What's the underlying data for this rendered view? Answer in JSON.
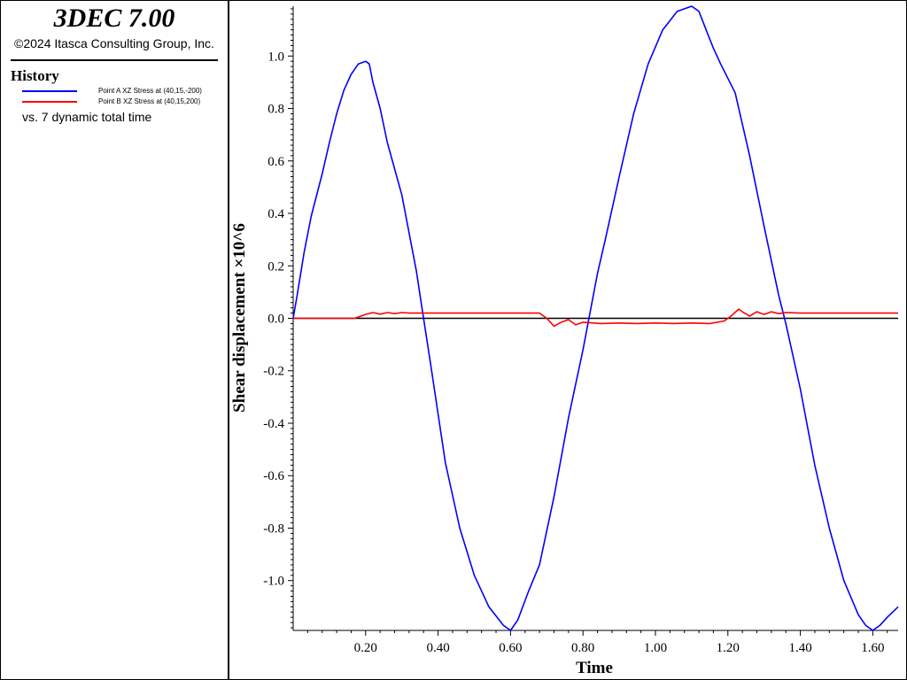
{
  "app": {
    "title": "3DEC 7.00",
    "copyright": "©2024 Itasca Consulting Group, Inc."
  },
  "legend": {
    "heading": "History",
    "vs_label": "vs. 7 dynamic total time",
    "entries": [
      {
        "label": "Point A XZ Stress at (40,15,-200)",
        "color": "#0000ff"
      },
      {
        "label": "Point B XZ Stress at (40,15,200)",
        "color": "#ff0000"
      }
    ]
  },
  "chart_data": {
    "type": "line",
    "xlabel": "Time",
    "ylabel": "Shear displacement ×10^6",
    "xlim": [
      0,
      1.67
    ],
    "ylim": [
      -1.19,
      1.19
    ],
    "xticks": [
      0.2,
      0.4,
      0.6,
      0.8,
      1.0,
      1.2,
      1.4,
      1.6
    ],
    "xtick_labels": [
      "0.20",
      "0.40",
      "0.60",
      "0.80",
      "1.00",
      "1.20",
      "1.40",
      "1.60"
    ],
    "yticks": [
      -1.0,
      -0.8,
      -0.6,
      -0.4,
      -0.2,
      0.0,
      0.2,
      0.4,
      0.6,
      0.8,
      1.0
    ],
    "ytick_labels": [
      "-1.0",
      "-0.8",
      "-0.6",
      "-0.4",
      "-0.2",
      "0.0",
      "0.2",
      "0.4",
      "0.6",
      "0.8",
      "1.0"
    ],
    "zero_line": true,
    "grid": false,
    "series": [
      {
        "name": "Point A XZ Stress at (40,15,-200)",
        "color": "#0000ff",
        "x": [
          0,
          0.01,
          0.03,
          0.05,
          0.08,
          0.1,
          0.12,
          0.14,
          0.16,
          0.18,
          0.2,
          0.21,
          0.22,
          0.24,
          0.26,
          0.3,
          0.34,
          0.36,
          0.38,
          0.42,
          0.46,
          0.5,
          0.54,
          0.58,
          0.6,
          0.62,
          0.65,
          0.68,
          0.72,
          0.76,
          0.8,
          0.84,
          0.86,
          0.9,
          0.94,
          0.98,
          1.02,
          1.06,
          1.1,
          1.12,
          1.14,
          1.16,
          1.18,
          1.22,
          1.26,
          1.3,
          1.34,
          1.36,
          1.4,
          1.44,
          1.48,
          1.52,
          1.56,
          1.58,
          1.6,
          1.62,
          1.64,
          1.67
        ],
        "y": [
          0,
          0.08,
          0.25,
          0.39,
          0.55,
          0.67,
          0.78,
          0.87,
          0.93,
          0.97,
          0.98,
          0.97,
          0.9,
          0.8,
          0.67,
          0.47,
          0.18,
          0.0,
          -0.18,
          -0.55,
          -0.8,
          -0.98,
          -1.1,
          -1.17,
          -1.19,
          -1.15,
          -1.04,
          -0.94,
          -0.68,
          -0.38,
          -0.12,
          0.17,
          0.29,
          0.54,
          0.78,
          0.97,
          1.1,
          1.17,
          1.19,
          1.17,
          1.1,
          1.03,
          0.97,
          0.86,
          0.62,
          0.35,
          0.09,
          -0.02,
          -0.27,
          -0.56,
          -0.8,
          -1.0,
          -1.13,
          -1.17,
          -1.19,
          -1.17,
          -1.14,
          -1.1
        ]
      },
      {
        "name": "Point B XZ Stress at (40,15,200)",
        "color": "#ff0000",
        "x": [
          0,
          0.17,
          0.2,
          0.22,
          0.24,
          0.26,
          0.28,
          0.3,
          0.32,
          0.4,
          0.5,
          0.6,
          0.68,
          0.7,
          0.72,
          0.74,
          0.76,
          0.78,
          0.8,
          0.85,
          0.9,
          0.95,
          1.0,
          1.05,
          1.1,
          1.15,
          1.19,
          1.21,
          1.23,
          1.24,
          1.26,
          1.28,
          1.3,
          1.32,
          1.34,
          1.36,
          1.4,
          1.45,
          1.5,
          1.55,
          1.6,
          1.67
        ],
        "y": [
          0,
          0.0,
          0.015,
          0.022,
          0.016,
          0.022,
          0.018,
          0.022,
          0.02,
          0.02,
          0.02,
          0.02,
          0.02,
          0.0,
          -0.03,
          -0.015,
          -0.005,
          -0.025,
          -0.015,
          -0.02,
          -0.018,
          -0.02,
          -0.018,
          -0.02,
          -0.018,
          -0.02,
          -0.01,
          0.01,
          0.035,
          0.025,
          0.008,
          0.025,
          0.015,
          0.025,
          0.018,
          0.022,
          0.02,
          0.02,
          0.02,
          0.02,
          0.02,
          0.02
        ]
      }
    ]
  }
}
